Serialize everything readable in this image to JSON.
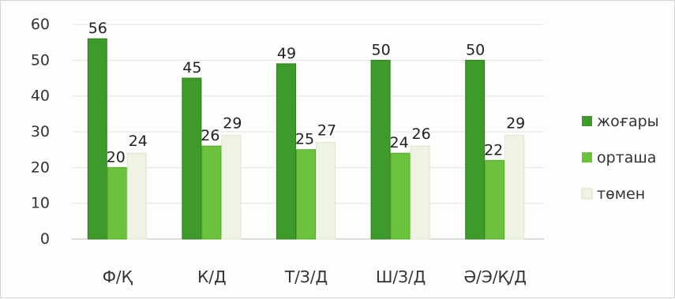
{
  "chart_data": {
    "type": "bar",
    "title": "",
    "xlabel": "",
    "ylabel": "",
    "ylim": [
      0,
      60
    ],
    "yticks": [
      0,
      10,
      20,
      30,
      40,
      50,
      60
    ],
    "grid": true,
    "legend_position": "right",
    "categories": [
      "Ф/Қ",
      "К/Д",
      "Т/З/Д",
      "Ш/З/Д",
      "Ә/Э/Қ/Д"
    ],
    "series": [
      {
        "name": "жоғары",
        "color": "#3f9a2c",
        "values": [
          56,
          45,
          49,
          50,
          50
        ]
      },
      {
        "name": "орташа",
        "color": "#6cc33b",
        "values": [
          20,
          26,
          25,
          24,
          22
        ]
      },
      {
        "name": "төмен",
        "color": "#eef3e4",
        "values": [
          24,
          29,
          27,
          26,
          29
        ]
      }
    ]
  }
}
